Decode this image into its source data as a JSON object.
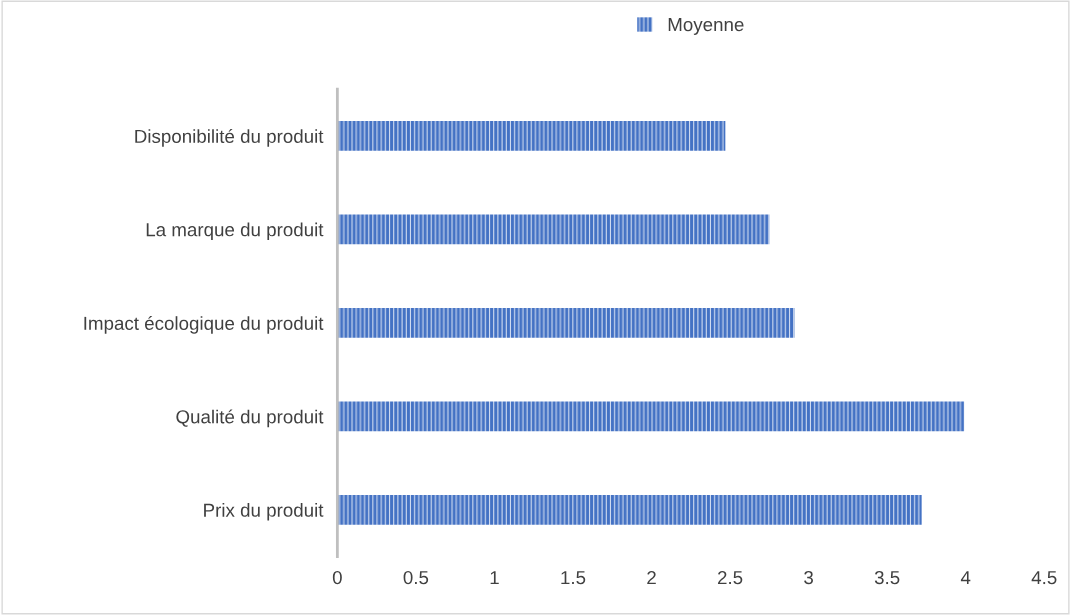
{
  "chart_data": {
    "type": "bar",
    "orientation": "horizontal",
    "categories": [
      "Disponibilité du produit",
      "La marque du produit",
      "Impact écologique du produit",
      "Qualité du produit",
      "Prix du produit"
    ],
    "series": [
      {
        "name": "Moyenne",
        "color": "#4472c4",
        "values": [
          2.47,
          2.75,
          2.91,
          3.99,
          3.72
        ]
      }
    ],
    "xlim": [
      0,
      4.5
    ],
    "xticks": [
      0,
      0.5,
      1,
      1.5,
      2,
      2.5,
      3,
      3.5,
      4,
      4.5
    ],
    "grid": false,
    "legend": "top"
  }
}
